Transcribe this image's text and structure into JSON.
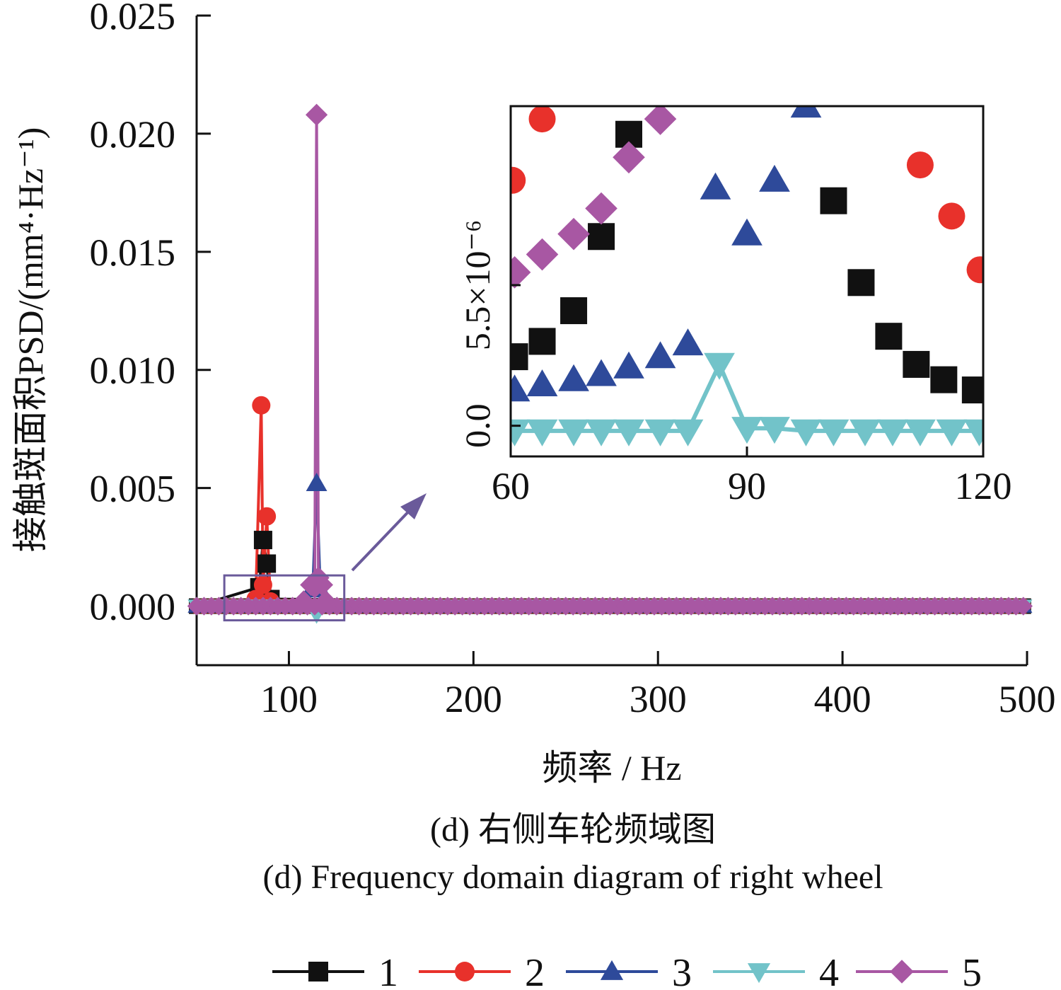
{
  "chart_data": [
    {
      "type": "line",
      "xlabel": "频率 / Hz",
      "ylabel": "接触斑面积PSD/(mm⁴·Hz⁻¹)",
      "xlim": [
        50,
        500
      ],
      "ylim": [
        -0.0025,
        0.025
      ],
      "xticks": [
        100,
        200,
        300,
        400,
        500
      ],
      "xtick_labels": [
        "100",
        "200",
        "300",
        "400",
        "500"
      ],
      "yticks": [
        0.0,
        0.005,
        0.01,
        0.015,
        0.02,
        0.025
      ],
      "ytick_labels": [
        "0.000",
        "0.005",
        "0.010",
        "0.015",
        "0.020",
        "0.025"
      ],
      "grid": false,
      "legend_position": "bottom",
      "series": [
        {
          "name": "1",
          "color": "#111111",
          "marker": "square",
          "x": [
            50,
            84,
            86,
            88,
            90,
            500
          ],
          "y": [
            0,
            0.0008,
            0.0028,
            0.0018,
            0.0003,
            0
          ]
        },
        {
          "name": "2",
          "color": "#e8312b",
          "marker": "circle",
          "x": [
            50,
            82,
            85,
            86,
            88,
            90,
            500
          ],
          "y": [
            0,
            0.0003,
            0.0085,
            0.0009,
            0.0038,
            0.0002,
            0
          ]
        },
        {
          "name": "3",
          "color": "#2e4a9a",
          "marker": "triangle-up",
          "x": [
            50,
            110,
            113,
            115,
            117,
            120,
            500
          ],
          "y": [
            0,
            0.0002,
            0.0008,
            0.0052,
            0.0007,
            0.0001,
            0
          ]
        },
        {
          "name": "4",
          "color": "#72c3c9",
          "marker": "triangle-down",
          "x": [
            50,
            110,
            115,
            120,
            500
          ],
          "y": [
            0,
            0,
            -0.0003,
            0,
            0
          ]
        },
        {
          "name": "5",
          "color": "#a857a3",
          "marker": "diamond",
          "x": [
            50,
            108,
            112,
            114,
            115,
            116,
            118,
            120,
            500
          ],
          "y": [
            0,
            0.0002,
            0.0009,
            0.0008,
            0.0208,
            0.0012,
            0.0009,
            0.0002,
            0
          ]
        }
      ],
      "zoom_box": {
        "x": [
          65,
          130
        ],
        "y": [
          -0.0006,
          0.0013
        ]
      }
    },
    {
      "type": "scatter",
      "role": "inset zoom",
      "xlim": [
        60,
        120
      ],
      "ylim": [
        -1.2e-06,
        1.25e-05
      ],
      "xticks": [
        60,
        90,
        120
      ],
      "xtick_labels": [
        "60",
        "90",
        "120"
      ],
      "yticks": [
        0.0,
        5.5e-06
      ],
      "ytick_labels": [
        "0.0",
        "5.5×10⁻⁶"
      ],
      "series": [
        {
          "name": "1",
          "color": "#111111",
          "marker": "square",
          "x": [
            60.5,
            64,
            68,
            71.5,
            75,
            101,
            104.5,
            108,
            111.5,
            115,
            119
          ],
          "y": [
            2.7e-06,
            3.3e-06,
            4.5e-06,
            7.4e-06,
            1.14e-05,
            8.8e-06,
            5.6e-06,
            3.5e-06,
            2.4e-06,
            1.8e-06,
            1.4e-06
          ]
        },
        {
          "name": "2",
          "color": "#e8312b",
          "marker": "circle",
          "x": [
            60.2,
            64,
            112,
            116,
            119.6
          ],
          "y": [
            9.6e-06,
            1.2e-05,
            1.02e-05,
            8.2e-06,
            6.1e-06
          ]
        },
        {
          "name": "3",
          "color": "#2e4a9a",
          "marker": "triangle-up",
          "x": [
            60.5,
            64,
            68,
            71.5,
            75,
            79,
            82.5,
            86,
            90,
            93.5,
            97.5
          ],
          "y": [
            1.4e-06,
            1.6e-06,
            1.8e-06,
            2e-06,
            2.3e-06,
            2.7e-06,
            3.2e-06,
            9.3e-06,
            7.5e-06,
            9.6e-06,
            1.25e-05
          ]
        },
        {
          "name": "4",
          "color": "#72c3c9",
          "marker": "triangle-down",
          "x": [
            60.5,
            64,
            68,
            71.5,
            75,
            79,
            82.5,
            86.5,
            90,
            93.5,
            97.5,
            101,
            105,
            108.5,
            112,
            116,
            119.5
          ],
          "y": [
            -2e-07,
            -2e-07,
            -2e-07,
            -2e-07,
            -2e-07,
            -2e-07,
            -2e-07,
            2.4e-06,
            -1e-07,
            -1e-07,
            -2e-07,
            -2e-07,
            -2e-07,
            -2e-07,
            -2e-07,
            -2e-07,
            -2e-07
          ]
        },
        {
          "name": "5",
          "color": "#a857a3",
          "marker": "diamond",
          "x": [
            60.5,
            64,
            68,
            71.5,
            75,
            79
          ],
          "y": [
            6e-06,
            6.7e-06,
            7.5e-06,
            8.5e-06,
            1.05e-05,
            1.2e-05
          ]
        }
      ]
    }
  ],
  "captions": {
    "cn": "(d) 右侧车轮频域图",
    "en": "(d) Frequency domain diagram of right wheel"
  },
  "legend": [
    {
      "label": "1",
      "color": "#111111",
      "marker": "square"
    },
    {
      "label": "2",
      "color": "#e8312b",
      "marker": "circle"
    },
    {
      "label": "3",
      "color": "#2e4a9a",
      "marker": "triangle-up"
    },
    {
      "label": "4",
      "color": "#72c3c9",
      "marker": "triangle-down"
    },
    {
      "label": "5",
      "color": "#a857a3",
      "marker": "diamond"
    }
  ],
  "colors": {
    "zoom_box": "#6a5a9a",
    "arrow": "#6a5a9a",
    "axis": "#111111"
  }
}
